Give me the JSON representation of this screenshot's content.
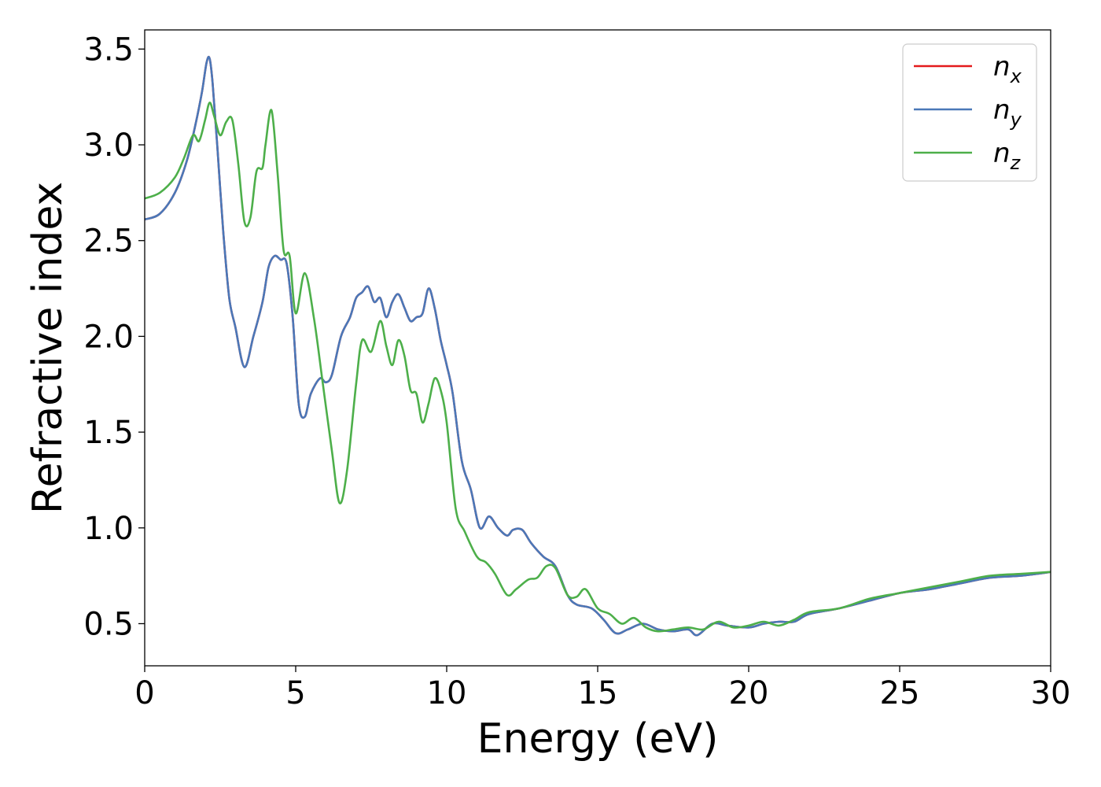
{
  "chart_data": {
    "type": "line",
    "title": "",
    "xlabel": "Energy (eV)",
    "ylabel": "Refractive index",
    "xlim": [
      0,
      30
    ],
    "ylim": [
      0.28,
      3.6
    ],
    "xticks": [
      0,
      5,
      10,
      15,
      20,
      25,
      30
    ],
    "xtick_labels": [
      "0",
      "5",
      "10",
      "15",
      "20",
      "25",
      "30"
    ],
    "yticks": [
      0.5,
      1.0,
      1.5,
      2.0,
      2.5,
      3.0,
      3.5
    ],
    "ytick_labels": [
      "0.5",
      "1.0",
      "1.5",
      "2.0",
      "2.5",
      "3.0",
      "3.5"
    ],
    "grid": false,
    "legend_position": "top-right",
    "legend": [
      {
        "base": "n",
        "sub": "x"
      },
      {
        "base": "n",
        "sub": "y"
      },
      {
        "base": "n",
        "sub": "z"
      }
    ],
    "series": [
      {
        "name": "n_x",
        "color": "#e41a1c",
        "x": [
          0,
          0.5,
          1.0,
          1.4,
          1.7,
          1.9,
          2.05,
          2.15,
          2.25,
          2.4,
          2.6,
          2.8,
          3.0,
          3.3,
          3.6,
          3.9,
          4.1,
          4.3,
          4.5,
          4.7,
          4.9,
          5.1,
          5.3,
          5.5,
          5.8,
          6.0,
          6.2,
          6.5,
          6.8,
          7.0,
          7.2,
          7.4,
          7.6,
          7.8,
          8.0,
          8.2,
          8.4,
          8.6,
          8.8,
          9.0,
          9.2,
          9.4,
          9.6,
          9.8,
          10.0,
          10.2,
          10.5,
          10.8,
          11.1,
          11.4,
          11.7,
          12.0,
          12.2,
          12.5,
          12.8,
          13.2,
          13.6,
          14.0,
          14.3,
          14.8,
          15.2,
          15.6,
          16.0,
          16.5,
          17.0,
          17.5,
          18.0,
          18.3,
          18.8,
          19.3,
          20.0,
          20.5,
          21.0,
          21.5,
          22.0,
          23.0,
          24.0,
          25.0,
          26.0,
          27.0,
          28.0,
          29.0,
          30.0
        ],
        "values": [
          2.61,
          2.64,
          2.75,
          2.92,
          3.12,
          3.28,
          3.43,
          3.45,
          3.32,
          3.0,
          2.55,
          2.2,
          2.05,
          1.84,
          2.0,
          2.18,
          2.36,
          2.42,
          2.4,
          2.38,
          2.1,
          1.65,
          1.58,
          1.7,
          1.78,
          1.76,
          1.8,
          2.0,
          2.1,
          2.2,
          2.23,
          2.26,
          2.18,
          2.2,
          2.1,
          2.18,
          2.22,
          2.15,
          2.08,
          2.1,
          2.12,
          2.25,
          2.15,
          1.98,
          1.85,
          1.7,
          1.35,
          1.2,
          1.0,
          1.06,
          1.0,
          0.96,
          0.99,
          0.99,
          0.92,
          0.85,
          0.8,
          0.65,
          0.6,
          0.58,
          0.52,
          0.45,
          0.47,
          0.5,
          0.47,
          0.46,
          0.47,
          0.44,
          0.5,
          0.49,
          0.48,
          0.5,
          0.51,
          0.51,
          0.55,
          0.58,
          0.62,
          0.66,
          0.68,
          0.71,
          0.74,
          0.75,
          0.77
        ]
      },
      {
        "name": "n_y",
        "color": "#4a78b8",
        "x": [
          0,
          0.5,
          1.0,
          1.4,
          1.7,
          1.9,
          2.05,
          2.15,
          2.25,
          2.4,
          2.6,
          2.8,
          3.0,
          3.3,
          3.6,
          3.9,
          4.1,
          4.3,
          4.5,
          4.7,
          4.9,
          5.1,
          5.3,
          5.5,
          5.8,
          6.0,
          6.2,
          6.5,
          6.8,
          7.0,
          7.2,
          7.4,
          7.6,
          7.8,
          8.0,
          8.2,
          8.4,
          8.6,
          8.8,
          9.0,
          9.2,
          9.4,
          9.6,
          9.8,
          10.0,
          10.2,
          10.5,
          10.8,
          11.1,
          11.4,
          11.7,
          12.0,
          12.2,
          12.5,
          12.8,
          13.2,
          13.6,
          14.0,
          14.3,
          14.8,
          15.2,
          15.6,
          16.0,
          16.5,
          17.0,
          17.5,
          18.0,
          18.3,
          18.8,
          19.3,
          20.0,
          20.5,
          21.0,
          21.5,
          22.0,
          23.0,
          24.0,
          25.0,
          26.0,
          27.0,
          28.0,
          29.0,
          30.0
        ],
        "values": [
          2.61,
          2.64,
          2.75,
          2.92,
          3.12,
          3.28,
          3.43,
          3.45,
          3.32,
          3.0,
          2.55,
          2.2,
          2.05,
          1.84,
          2.0,
          2.18,
          2.36,
          2.42,
          2.4,
          2.38,
          2.1,
          1.65,
          1.58,
          1.7,
          1.78,
          1.76,
          1.8,
          2.0,
          2.1,
          2.2,
          2.23,
          2.26,
          2.18,
          2.2,
          2.1,
          2.18,
          2.22,
          2.15,
          2.08,
          2.1,
          2.12,
          2.25,
          2.15,
          1.98,
          1.85,
          1.7,
          1.35,
          1.2,
          1.0,
          1.06,
          1.0,
          0.96,
          0.99,
          0.99,
          0.92,
          0.85,
          0.8,
          0.65,
          0.6,
          0.58,
          0.52,
          0.45,
          0.47,
          0.5,
          0.47,
          0.46,
          0.47,
          0.44,
          0.5,
          0.49,
          0.48,
          0.5,
          0.51,
          0.51,
          0.55,
          0.58,
          0.62,
          0.66,
          0.68,
          0.71,
          0.74,
          0.75,
          0.77
        ]
      },
      {
        "name": "n_z",
        "color": "#4daf4a",
        "x": [
          0,
          0.5,
          1.0,
          1.3,
          1.6,
          1.8,
          2.0,
          2.15,
          2.3,
          2.5,
          2.7,
          2.9,
          3.1,
          3.3,
          3.5,
          3.7,
          3.9,
          4.0,
          4.2,
          4.4,
          4.6,
          4.8,
          5.0,
          5.3,
          5.6,
          5.9,
          6.2,
          6.45,
          6.7,
          7.0,
          7.2,
          7.5,
          7.8,
          8.0,
          8.2,
          8.4,
          8.6,
          8.8,
          9.0,
          9.2,
          9.4,
          9.6,
          9.8,
          10.0,
          10.3,
          10.6,
          11.0,
          11.3,
          11.6,
          12.0,
          12.3,
          12.7,
          13.0,
          13.3,
          13.6,
          14.0,
          14.3,
          14.6,
          15.0,
          15.4,
          15.8,
          16.2,
          16.6,
          17.0,
          17.5,
          18.0,
          18.5,
          19.0,
          19.5,
          20.0,
          20.5,
          21.0,
          21.5,
          22.0,
          23.0,
          24.0,
          25.0,
          26.0,
          27.0,
          28.0,
          29.0,
          30.0
        ],
        "values": [
          2.72,
          2.75,
          2.83,
          2.93,
          3.05,
          3.02,
          3.13,
          3.22,
          3.15,
          3.05,
          3.12,
          3.13,
          2.9,
          2.6,
          2.62,
          2.86,
          2.88,
          3.0,
          3.18,
          2.85,
          2.45,
          2.42,
          2.12,
          2.33,
          2.1,
          1.75,
          1.4,
          1.13,
          1.3,
          1.75,
          1.98,
          1.92,
          2.08,
          1.95,
          1.85,
          1.98,
          1.9,
          1.72,
          1.7,
          1.55,
          1.65,
          1.78,
          1.72,
          1.55,
          1.1,
          0.98,
          0.85,
          0.82,
          0.76,
          0.65,
          0.68,
          0.73,
          0.74,
          0.8,
          0.79,
          0.65,
          0.64,
          0.68,
          0.58,
          0.55,
          0.5,
          0.53,
          0.48,
          0.46,
          0.47,
          0.48,
          0.47,
          0.51,
          0.48,
          0.49,
          0.51,
          0.49,
          0.52,
          0.56,
          0.58,
          0.63,
          0.66,
          0.69,
          0.72,
          0.75,
          0.76,
          0.77
        ]
      }
    ]
  }
}
